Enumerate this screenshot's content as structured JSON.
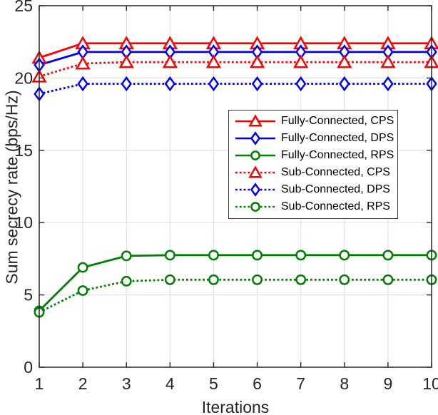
{
  "figure": {
    "background_color": "#ffffff",
    "axis_color": "#262626",
    "grid_color": "#e2e2e2",
    "legend_border_color": "#3c3c3c"
  },
  "chart_data": {
    "type": "line",
    "title": "",
    "xlabel": "Iterations",
    "ylabel": "Sum secrecy rate (bps/Hz)",
    "xlim": [
      1,
      10
    ],
    "ylim": [
      0,
      25
    ],
    "x_ticks": [
      1,
      2,
      3,
      4,
      5,
      6,
      7,
      8,
      9,
      10
    ],
    "y_ticks": [
      0,
      5,
      10,
      15,
      20,
      25
    ],
    "grid": "on",
    "legend_position": "middle-right",
    "x": [
      1,
      2,
      3,
      4,
      5,
      6,
      7,
      8,
      9,
      10
    ],
    "series": [
      {
        "name": "Fully-Connected, CPS",
        "color": "#ff0000",
        "line_style": "solid",
        "marker": "triangle",
        "values": [
          21.4,
          22.4,
          22.4,
          22.4,
          22.4,
          22.4,
          22.4,
          22.4,
          22.4,
          22.4
        ]
      },
      {
        "name": "Fully-Connected, DPS",
        "color": "#0000ff",
        "line_style": "solid",
        "marker": "diamond",
        "values": [
          20.9,
          21.8,
          21.8,
          21.8,
          21.8,
          21.8,
          21.8,
          21.8,
          21.8,
          21.8
        ]
      },
      {
        "name": "Fully-Connected, RPS",
        "color": "#008000",
        "line_style": "solid",
        "marker": "circle",
        "values": [
          3.9,
          6.9,
          7.7,
          7.75,
          7.75,
          7.75,
          7.75,
          7.75,
          7.75,
          7.75
        ]
      },
      {
        "name": "Sub-Connected, CPS",
        "color": "#ff0000",
        "line_style": "dotted",
        "marker": "triangle",
        "values": [
          20.1,
          21.0,
          21.1,
          21.1,
          21.1,
          21.1,
          21.1,
          21.1,
          21.1,
          21.1
        ]
      },
      {
        "name": "Sub-Connected, DPS",
        "color": "#0000ff",
        "line_style": "dotted",
        "marker": "diamond",
        "values": [
          18.9,
          19.6,
          19.6,
          19.6,
          19.6,
          19.6,
          19.6,
          19.6,
          19.6,
          19.6
        ]
      },
      {
        "name": "Sub-Connected, RPS",
        "color": "#008000",
        "line_style": "dotted",
        "marker": "circle",
        "values": [
          3.8,
          5.3,
          5.95,
          6.05,
          6.05,
          6.05,
          6.05,
          6.05,
          6.05,
          6.05
        ]
      }
    ]
  }
}
